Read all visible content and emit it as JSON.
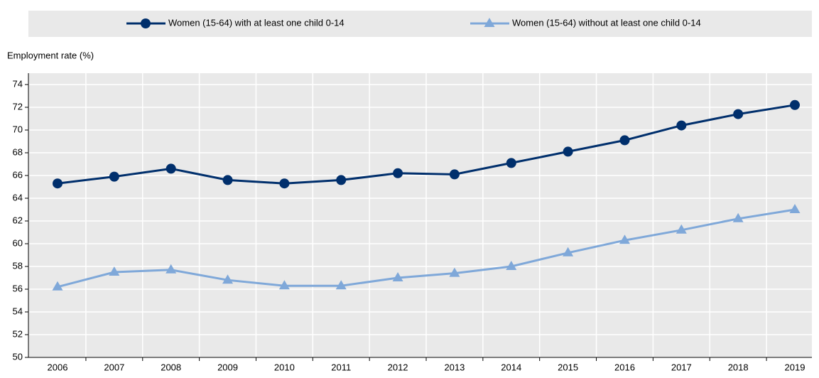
{
  "chart_data": {
    "type": "line",
    "y_label": "Employment rate (%)",
    "categories": [
      "2006",
      "2007",
      "2008",
      "2009",
      "2010",
      "2011",
      "2012",
      "2013",
      "2014",
      "2015",
      "2016",
      "2017",
      "2018",
      "2019"
    ],
    "series": [
      {
        "name": "Women (15-64) with at least one child 0-14",
        "color": "#002f6c",
        "marker": "circle",
        "values": [
          65.3,
          65.9,
          66.6,
          65.6,
          65.3,
          65.6,
          66.2,
          66.1,
          67.1,
          68.1,
          69.1,
          70.4,
          71.4,
          72.2
        ]
      },
      {
        "name": "Women (15-64) without at least one child 0-14",
        "color": "#7fa8d9",
        "marker": "triangle",
        "values": [
          56.2,
          57.5,
          57.7,
          56.8,
          56.3,
          56.3,
          57.0,
          57.4,
          58.0,
          59.2,
          60.3,
          61.2,
          62.2,
          63.0
        ]
      }
    ],
    "ylim": [
      50,
      75
    ],
    "yticks": [
      50,
      52,
      54,
      56,
      58,
      60,
      62,
      64,
      66,
      68,
      70,
      72,
      74
    ],
    "grid": true,
    "legend": "top"
  }
}
